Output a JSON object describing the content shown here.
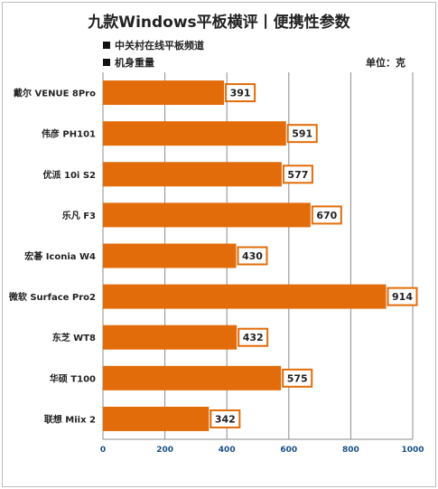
{
  "chart_data": {
    "type": "bar",
    "orientation": "horizontal",
    "title": "九款Windows平板横评丨便携性参数",
    "legend_items": [
      "中关村在线平板频道",
      "机身重量"
    ],
    "unit_label": "单位：克",
    "categories": [
      "戴尔 VENUE 8Pro",
      "伟彦 PH101",
      "优派 10i S2",
      "乐凡 F3",
      "宏碁 Iconia W4",
      "微软 Surface Pro2",
      "东芝 WT8",
      "华硕 T100",
      "联想 Miix 2"
    ],
    "values": [
      391,
      591,
      577,
      670,
      430,
      914,
      432,
      575,
      342
    ],
    "xlim": [
      0,
      1000
    ],
    "xticks": [
      0,
      200,
      400,
      600,
      800,
      1000
    ],
    "grid": "vertical",
    "bar_color": "#e36c0a",
    "label_border_color": "#e36c0a"
  }
}
